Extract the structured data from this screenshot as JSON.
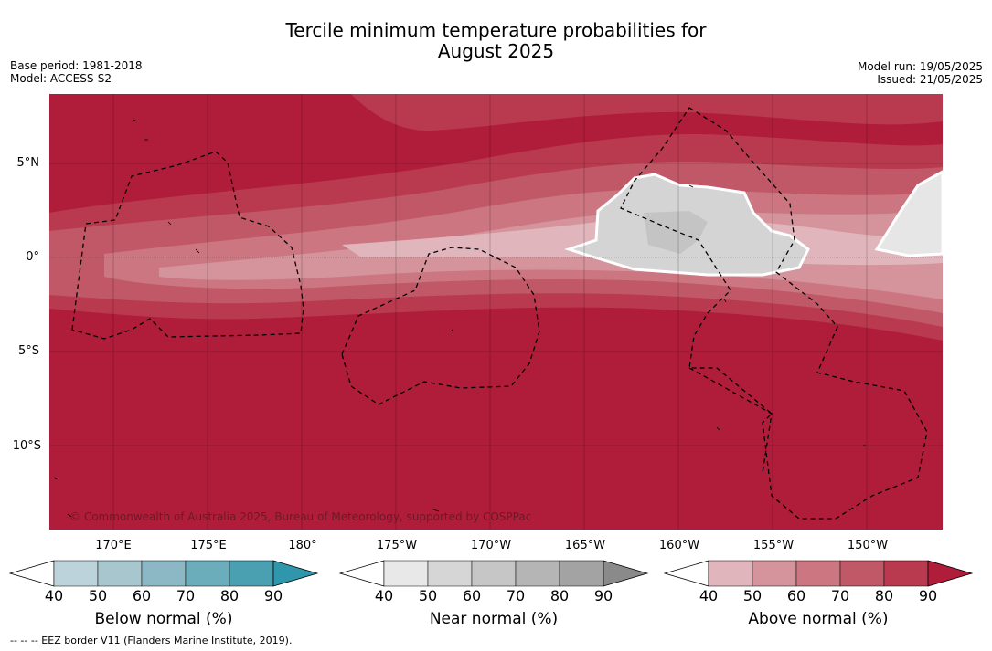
{
  "title_line1": "Tercile minimum temperature probabilities for",
  "title_line2": "August 2025",
  "base_period": "Base period: 1981-2018",
  "model": "Model: ACCESS-S2",
  "model_run": "Model run: 19/05/2025",
  "issued": "Issued: 21/05/2025",
  "copyright": "© Commonwealth of Australia 2025, Bureau of Meteorology, supported by COSPPac",
  "latitudes": [
    "5°N",
    "0°",
    "5°S",
    "10°S"
  ],
  "longitudes": [
    "170°E",
    "175°E",
    "180°",
    "175°W",
    "170°W",
    "165°W",
    "160°W",
    "155°W",
    "150°W"
  ],
  "colorbars": [
    {
      "title": "Below normal (%)",
      "ticks": [
        "40",
        "50",
        "60",
        "70",
        "80",
        "90"
      ],
      "colors": [
        "#ffffff",
        "#bdd3db",
        "#a8c6cd",
        "#8bb8c4",
        "#6badbb",
        "#4aa0b0",
        "#2f96ab"
      ]
    },
    {
      "title": "Near normal (%)",
      "ticks": [
        "40",
        "50",
        "60",
        "70",
        "80",
        "90"
      ],
      "colors": [
        "#ffffff",
        "#e8e8e8",
        "#d6d6d6",
        "#c6c6c6",
        "#b5b5b5",
        "#a3a3a3",
        "#8a8a8a"
      ]
    },
    {
      "title": "Above normal (%)",
      "ticks": [
        "40",
        "50",
        "60",
        "70",
        "80",
        "90"
      ],
      "colors": [
        "#ffffff",
        "#e0b6bc",
        "#d5939c",
        "#cb7680",
        "#c05868",
        "#b93a4e",
        "#b01d3a"
      ]
    }
  ],
  "footnote": "--  --  -- EEZ border V11 (Flanders Marine Institute, 2019)."
}
